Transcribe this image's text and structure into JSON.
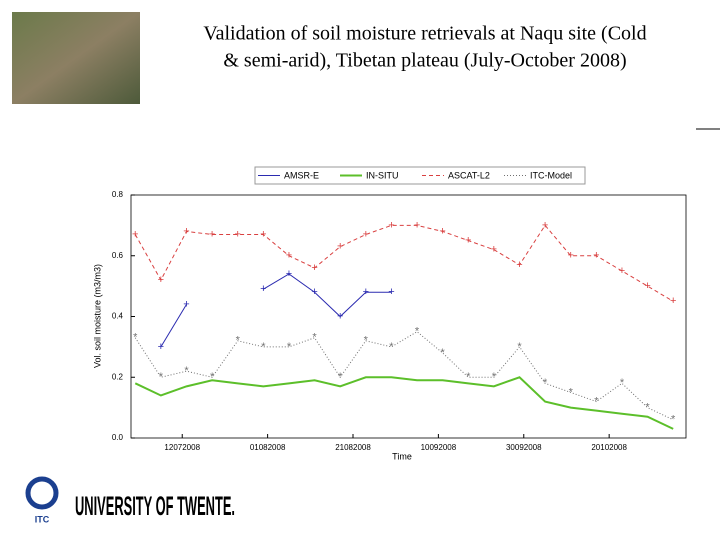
{
  "title_lines": [
    "Validation of soil moisture retrievals at Naqu site (Cold",
    "& semi-arid), Tibetan plateau (July-October 2008)"
  ],
  "logo": {
    "mark": "ITC",
    "text": "UNIVERSITY OF TWENTE."
  },
  "chart_data": {
    "type": "line",
    "x_label": "Time",
    "y_label": "Vol. soil moisture (m3/m3)",
    "x": [
      "2008-07-01",
      "2008-07-07",
      "2008-07-13",
      "2008-07-19",
      "2008-07-25",
      "2008-07-31",
      "2008-08-06",
      "2008-08-12",
      "2008-08-18",
      "2008-08-24",
      "2008-08-30",
      "2008-09-05",
      "2008-09-11",
      "2008-09-17",
      "2008-09-23",
      "2008-09-29",
      "2008-10-05",
      "2008-10-11",
      "2008-10-17",
      "2008-10-23",
      "2008-10-29",
      "2008-11-04"
    ],
    "xlim": [
      "2008-06-30",
      "2008-11-07"
    ],
    "xticks": [
      {
        "value": "2008-07-12",
        "label": "12072008"
      },
      {
        "value": "2008-08-01",
        "label": "01082008"
      },
      {
        "value": "2008-08-21",
        "label": "21082008"
      },
      {
        "value": "2008-09-10",
        "label": "10092008"
      },
      {
        "value": "2008-09-30",
        "label": "30092008"
      },
      {
        "value": "2008-10-20",
        "label": "20102008"
      }
    ],
    "ylim": [
      0,
      0.8
    ],
    "yticks": [
      {
        "value": 0,
        "label": "0.0"
      },
      0.2,
      0.4,
      0.6,
      0.8
    ],
    "series": [
      {
        "name": "AMSR-E",
        "color": "#2b2bb0",
        "values": [
          null,
          0.3,
          0.44,
          null,
          null,
          0.49,
          0.54,
          0.48,
          0.4,
          0.48,
          0.48,
          null,
          null,
          null,
          null,
          null,
          null,
          null,
          null,
          null,
          null,
          null
        ]
      },
      {
        "name": "IN-SITU",
        "color": "#5cbf2a",
        "values": [
          0.18,
          0.14,
          0.17,
          0.19,
          0.18,
          0.17,
          0.18,
          0.19,
          0.17,
          0.2,
          0.2,
          0.19,
          0.19,
          0.18,
          0.17,
          0.2,
          0.12,
          0.1,
          0.09,
          0.08,
          0.07,
          0.03
        ]
      },
      {
        "name": "ASCAT-L2",
        "color": "#d94040",
        "values": [
          0.67,
          0.52,
          0.68,
          0.67,
          0.67,
          0.67,
          0.6,
          0.56,
          0.63,
          0.67,
          0.7,
          0.7,
          0.68,
          0.65,
          0.62,
          0.57,
          0.7,
          0.6,
          0.6,
          0.55,
          0.5,
          0.45
        ]
      },
      {
        "name": "ITC-Model",
        "color": "#707070",
        "values": [
          0.33,
          0.2,
          0.22,
          0.2,
          0.32,
          0.3,
          0.3,
          0.33,
          0.2,
          0.32,
          0.3,
          0.35,
          0.28,
          0.2,
          0.2,
          0.3,
          0.18,
          0.15,
          0.12,
          0.18,
          0.1,
          0.06
        ]
      }
    ]
  }
}
